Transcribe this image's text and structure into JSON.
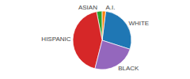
{
  "chart_data": {
    "type": "pie",
    "categories": [
      "WHITE",
      "A.I.",
      "ASIAN",
      "HISPANIC",
      "BLACK"
    ],
    "values": [
      28,
      2,
      3,
      43,
      24
    ]
  }
}
